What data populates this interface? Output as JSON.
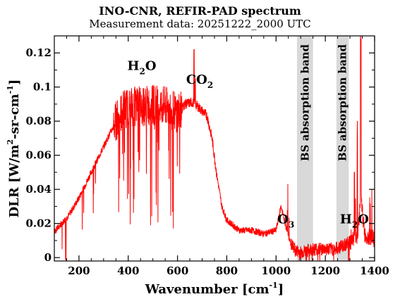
{
  "chart_data": {
    "type": "line",
    "title": "INO-CNR, REFIR-PAD spectrum",
    "subtitle": "Measurement data: 20251222_2000 UTC",
    "xlabel": "Wavenumber [cm-1]",
    "ylabel": "DLR [W/m2-sr-cm-1]",
    "xlim": [
      100,
      1400
    ],
    "ylim": [
      -0.002,
      0.13
    ],
    "x_ticks": [
      200,
      400,
      600,
      800,
      1000,
      1200,
      1400
    ],
    "x_tick_labels": [
      "200",
      "400",
      "600",
      "800",
      "1000",
      "1200",
      "1400"
    ],
    "y_ticks": [
      0,
      0.02,
      0.04,
      0.06,
      0.08,
      0.1,
      0.12
    ],
    "y_tick_labels": [
      "0",
      "0.02",
      "0.04",
      "0.06",
      "0.08",
      "0.1",
      "0.12"
    ],
    "grid": false,
    "line_color": "#ff0000",
    "band_color": "#d9d9d9",
    "shaded_bands": [
      {
        "label": "BS absorption band",
        "x_start": 1085,
        "x_end": 1150
      },
      {
        "label": "BS absorption band",
        "x_start": 1245,
        "x_end": 1295
      }
    ],
    "annotations": [
      {
        "main": "H",
        "sub": "2",
        "tail": "O",
        "x": 455,
        "y": 0.11
      },
      {
        "main": "CO",
        "sub": "2",
        "tail": "",
        "x": 690,
        "y": 0.102
      },
      {
        "main": "O",
        "sub": "3",
        "tail": "",
        "x": 1040,
        "y": 0.02
      },
      {
        "main": "H",
        "sub": "2",
        "tail": "O",
        "x": 1318,
        "y": 0.02
      }
    ],
    "series": [
      {
        "x": [
          100,
          130,
          160,
          200,
          250,
          300,
          350,
          380,
          400,
          440,
          480,
          520,
          560,
          600,
          630,
          660,
          680,
          700,
          720,
          740,
          760,
          780,
          800,
          850,
          900,
          950,
          1000,
          1020,
          1040,
          1060,
          1080,
          1100,
          1150,
          1200,
          1240,
          1300,
          1330,
          1345,
          1360,
          1400
        ],
        "y": [
          0.015,
          0.02,
          0.025,
          0.035,
          0.05,
          0.065,
          0.08,
          0.087,
          0.088,
          0.089,
          0.089,
          0.09,
          0.088,
          0.085,
          0.09,
          0.091,
          0.089,
          0.086,
          0.083,
          0.07,
          0.048,
          0.03,
          0.022,
          0.016,
          0.016,
          0.014,
          0.016,
          0.03,
          0.018,
          0.008,
          0.004,
          0.003,
          0.005,
          0.005,
          0.005,
          0.009,
          0.013,
          0.035,
          0.013,
          0.011
        ]
      }
    ]
  }
}
